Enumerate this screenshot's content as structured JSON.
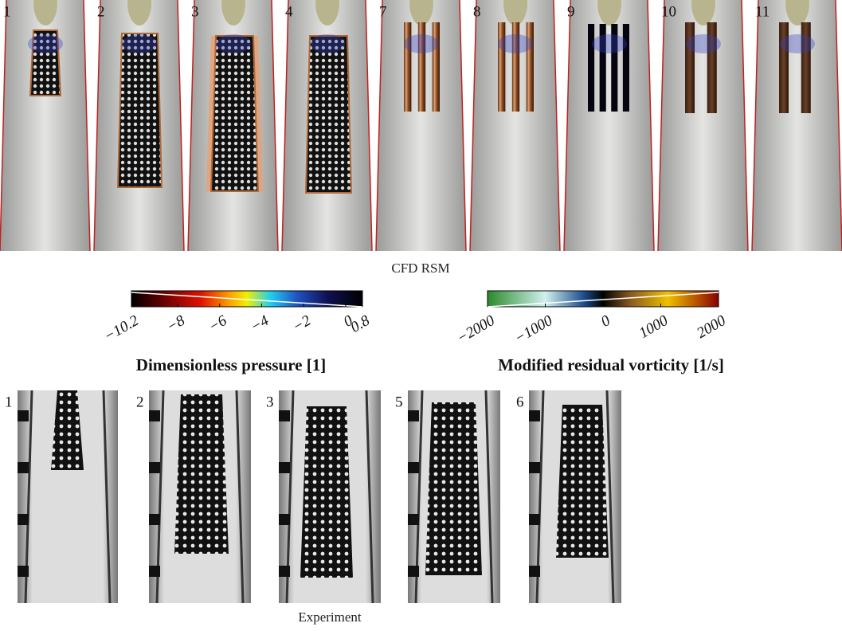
{
  "cfd": {
    "panels": [
      "1",
      "2",
      "3",
      "4",
      "7",
      "8",
      "9",
      "10",
      "11"
    ],
    "caption": "CFD RSM"
  },
  "colorbars": [
    {
      "label": "Dimensionless pressure [1]",
      "lim": [
        -10.2,
        0.8
      ],
      "ticks": [
        {
          "value": -10.2,
          "label": "−10.2"
        },
        {
          "value": -8,
          "label": "−8"
        },
        {
          "value": -6,
          "label": "−6"
        },
        {
          "value": -4,
          "label": "−4"
        },
        {
          "value": -2,
          "label": "−2"
        },
        0,
        0.8
      ]
    },
    {
      "label": "Modified residual vorticity [1/s]",
      "lim": [
        -2000,
        2000
      ],
      "ticks": [
        {
          "value": -2000,
          "label": "−2000"
        },
        {
          "value": -1000,
          "label": "−1000"
        },
        0,
        1000,
        2000
      ]
    }
  ],
  "experiment": {
    "panels": [
      "1",
      "2",
      "3",
      "5",
      "6"
    ],
    "caption": "Experiment"
  }
}
